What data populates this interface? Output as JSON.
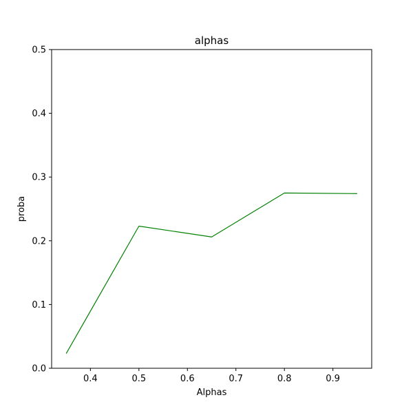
{
  "chart_data": {
    "type": "line",
    "title": "alphas",
    "xlabel": "Alphas",
    "ylabel": "proba",
    "xlim": [
      0.32,
      0.98
    ],
    "ylim": [
      0.0,
      0.5
    ],
    "x_ticks": [
      0.4,
      0.5,
      0.6,
      0.7,
      0.8,
      0.9
    ],
    "x_tick_labels": [
      "0.4",
      "0.5",
      "0.6",
      "0.7",
      "0.8",
      "0.9"
    ],
    "y_ticks": [
      0.0,
      0.1,
      0.2,
      0.3,
      0.4,
      0.5
    ],
    "y_tick_labels": [
      "0.0",
      "0.1",
      "0.2",
      "0.3",
      "0.4",
      "0.5"
    ],
    "grid": false,
    "series": [
      {
        "color": "#008000",
        "x": [
          0.35,
          0.5,
          0.65,
          0.8,
          0.95
        ],
        "y": [
          0.023,
          0.223,
          0.206,
          0.275,
          0.274
        ]
      }
    ]
  }
}
